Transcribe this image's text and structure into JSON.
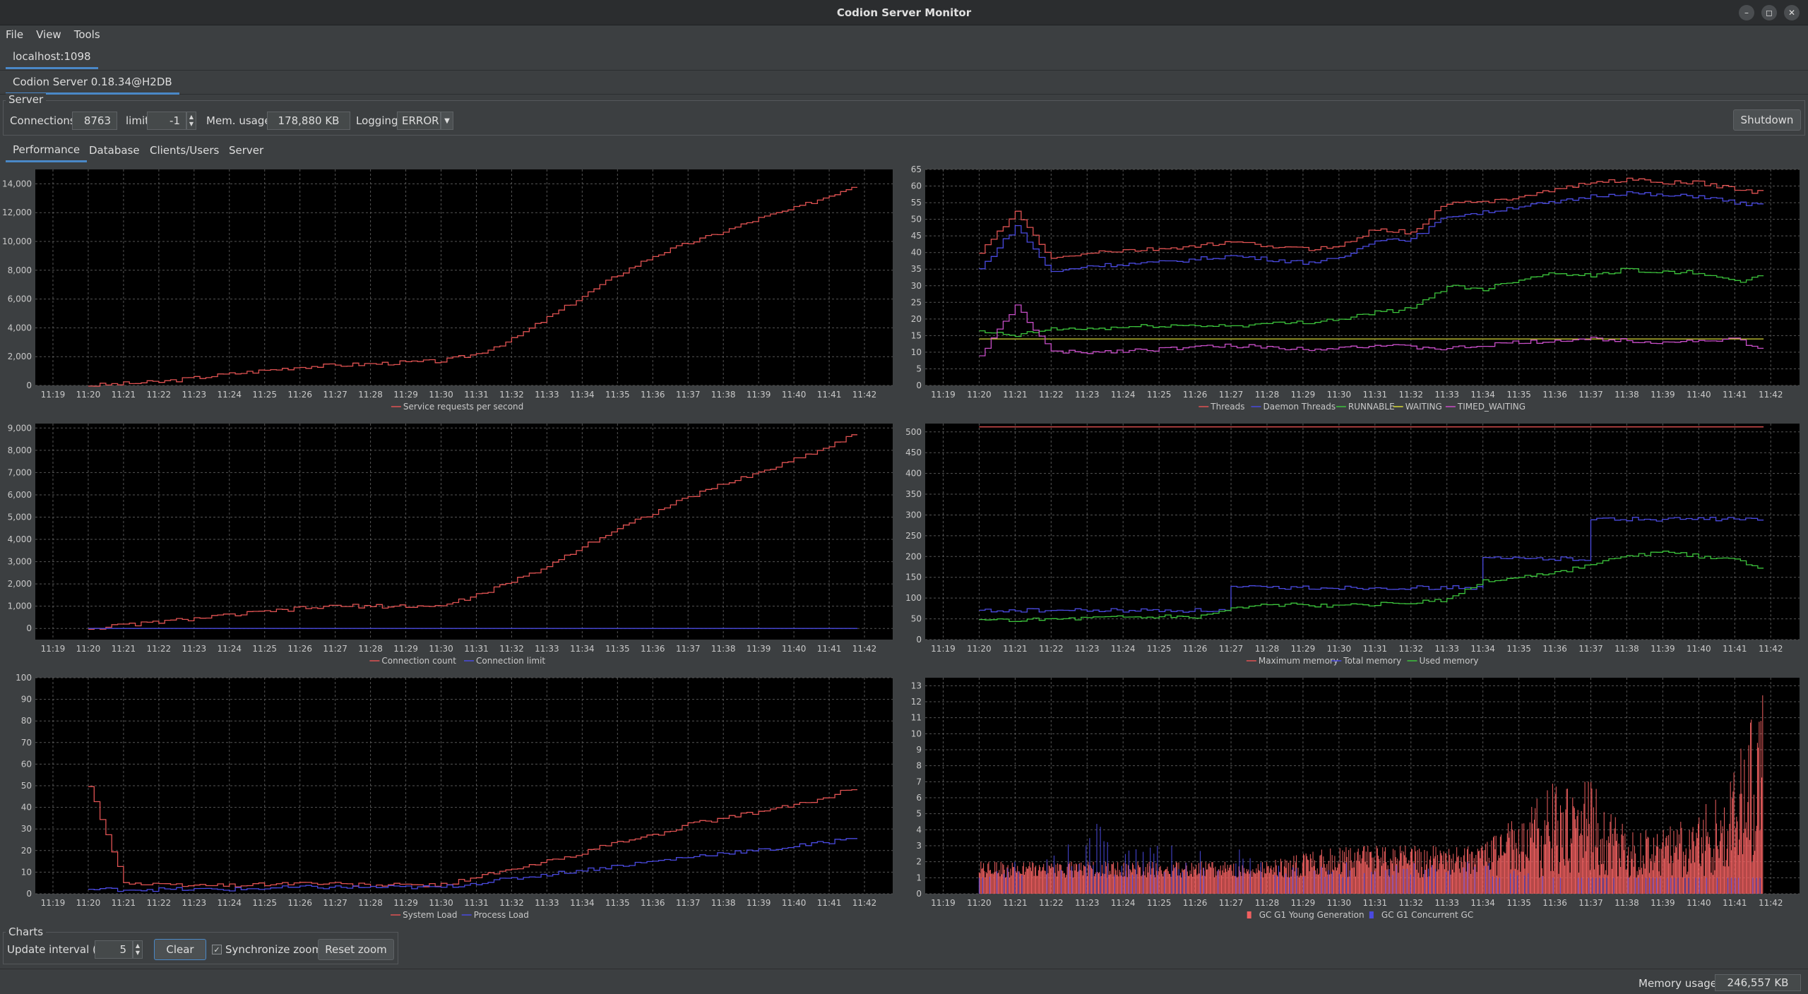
{
  "window": {
    "title": "Codion Server Monitor"
  },
  "menu": [
    "File",
    "View",
    "Tools"
  ],
  "host_tab": "localhost:1098",
  "server_tab": "Codion Server 0.18.34@H2DB",
  "server_group": {
    "label": "Server",
    "connections_label": "Connections",
    "connections_value": "8763",
    "limit_label": "limit",
    "limit_value": "-1",
    "mem_label": "Mem. usage",
    "mem_value": "178,880 KB",
    "logging_label": "Logging",
    "logging_value": "ERROR",
    "shutdown_label": "Shutdown"
  },
  "tabs": [
    "Performance",
    "Database",
    "Clients/Users",
    "Server"
  ],
  "active_tab": "Performance",
  "charts_group": {
    "label": "Charts",
    "interval_label": "Update interval (s)",
    "interval_value": "5",
    "clear_label": "Clear",
    "sync_label": "Synchronize zoom",
    "sync_checked": true,
    "reset_label": "Reset zoom"
  },
  "status": {
    "memory_label": "Memory usage:",
    "memory_value": "246,557 KB"
  },
  "colors": {
    "red": "#e05252",
    "blue": "#4a4ae0",
    "green": "#3cc43c",
    "yellow": "#d8d836",
    "magenta": "#c84ec8",
    "plot_bg": "#000000"
  },
  "chart_data": [
    {
      "type": "line",
      "x_ticks": [
        "11:19",
        "11:20",
        "11:21",
        "11:22",
        "11:23",
        "11:24",
        "11:25",
        "11:26",
        "11:27",
        "11:28",
        "11:29",
        "11:30",
        "11:31",
        "11:32",
        "11:33",
        "11:34",
        "11:35",
        "11:36",
        "11:37",
        "11:38",
        "11:39",
        "11:40",
        "11:41",
        "11:42"
      ],
      "ylim": [
        0,
        15000
      ],
      "y_ticks": [
        "0",
        "2,000",
        "4,000",
        "6,000",
        "8,000",
        "10,000",
        "12,000",
        "14,000"
      ],
      "series": [
        {
          "name": "Service requests per second",
          "color": "#e05252",
          "x": [
            "11:20",
            "11:22",
            "11:24",
            "11:26",
            "11:28",
            "11:30",
            "11:31",
            "11:32",
            "11:33",
            "11:34",
            "11:35",
            "11:36",
            "11:37",
            "11:38",
            "11:39",
            "11:40",
            "11:41",
            "11:42"
          ],
          "values": [
            0,
            250,
            800,
            1300,
            1500,
            1700,
            2200,
            3200,
            4700,
            6200,
            7700,
            9000,
            9900,
            10700,
            11600,
            12300,
            13200,
            14000
          ]
        }
      ]
    },
    {
      "type": "line",
      "x_ticks": [
        "11:19",
        "11:20",
        "11:21",
        "11:22",
        "11:23",
        "11:24",
        "11:25",
        "11:26",
        "11:27",
        "11:28",
        "11:29",
        "11:30",
        "11:31",
        "11:32",
        "11:33",
        "11:34",
        "11:35",
        "11:36",
        "11:37",
        "11:38",
        "11:39",
        "11:40",
        "11:41",
        "11:42"
      ],
      "ylim": [
        0,
        65
      ],
      "y_ticks": [
        "0",
        "5",
        "10",
        "15",
        "20",
        "25",
        "30",
        "35",
        "40",
        "45",
        "50",
        "55",
        "60",
        "65"
      ],
      "series": [
        {
          "name": "Threads",
          "color": "#e05252",
          "x": [
            "11:20",
            "11:21",
            "11:22",
            "11:23",
            "11:25",
            "11:27",
            "11:29",
            "11:30",
            "11:31",
            "11:32",
            "11:33",
            "11:34",
            "11:35",
            "11:36",
            "11:37",
            "11:38",
            "11:39",
            "11:40",
            "11:41",
            "11:42"
          ],
          "values": [
            40,
            52,
            38,
            40,
            41,
            43,
            41,
            42,
            47,
            46,
            55,
            55,
            57,
            59,
            61,
            62,
            61,
            61,
            59,
            58
          ]
        },
        {
          "name": "Daemon Threads",
          "color": "#4a4ae0",
          "x": [
            "11:20",
            "11:21",
            "11:22",
            "11:23",
            "11:25",
            "11:27",
            "11:29",
            "11:30",
            "11:31",
            "11:32",
            "11:33",
            "11:34",
            "11:35",
            "11:36",
            "11:37",
            "11:38",
            "11:39",
            "11:40",
            "11:41",
            "11:42"
          ],
          "values": [
            35,
            48,
            34,
            36,
            37,
            39,
            37,
            38,
            44,
            44,
            51,
            52,
            54,
            55,
            57,
            58,
            57,
            57,
            55,
            54
          ]
        },
        {
          "name": "RUNNABLE",
          "color": "#3cc43c",
          "x": [
            "11:20",
            "11:21",
            "11:22",
            "11:23",
            "11:25",
            "11:27",
            "11:29",
            "11:30",
            "11:31",
            "11:32",
            "11:33",
            "11:34",
            "11:35",
            "11:36",
            "11:37",
            "11:38",
            "11:39",
            "11:40",
            "11:41",
            "11:42"
          ],
          "values": [
            16,
            15,
            17,
            17,
            18,
            18,
            19,
            20,
            22,
            23,
            30,
            29,
            32,
            34,
            33,
            35,
            34,
            34,
            31,
            33
          ]
        },
        {
          "name": "WAITING",
          "color": "#d8d836",
          "x": [
            "11:20",
            "11:42"
          ],
          "values": [
            14,
            14
          ]
        },
        {
          "name": "TIMED_WAITING",
          "color": "#c84ec8",
          "x": [
            "11:20",
            "11:21",
            "11:22",
            "11:23",
            "11:25",
            "11:27",
            "11:29",
            "11:31",
            "11:33",
            "11:35",
            "11:37",
            "11:39",
            "11:41",
            "11:42"
          ],
          "values": [
            9,
            24,
            10,
            10,
            11,
            12,
            11,
            12,
            11,
            13,
            14,
            13,
            14,
            10
          ]
        }
      ]
    },
    {
      "type": "line",
      "x_ticks": [
        "11:19",
        "11:20",
        "11:21",
        "11:22",
        "11:23",
        "11:24",
        "11:25",
        "11:26",
        "11:27",
        "11:28",
        "11:29",
        "11:30",
        "11:31",
        "11:32",
        "11:33",
        "11:34",
        "11:35",
        "11:36",
        "11:37",
        "11:38",
        "11:39",
        "11:40",
        "11:41",
        "11:42"
      ],
      "ylim": [
        -500,
        9200
      ],
      "y_ticks": [
        "0",
        "1,000",
        "2,000",
        "3,000",
        "4,000",
        "5,000",
        "6,000",
        "7,000",
        "8,000",
        "9,000"
      ],
      "series": [
        {
          "name": "Connection count",
          "color": "#e05252",
          "x": [
            "11:20",
            "11:22",
            "11:24",
            "11:26",
            "11:27",
            "11:28",
            "11:29",
            "11:30",
            "11:31",
            "11:32",
            "11:33",
            "11:34",
            "11:35",
            "11:36",
            "11:37",
            "11:38",
            "11:39",
            "11:40",
            "11:41",
            "11:42"
          ],
          "values": [
            0,
            300,
            600,
            900,
            1000,
            1000,
            1000,
            1000,
            1500,
            2100,
            2800,
            3700,
            4500,
            5200,
            5900,
            6500,
            7000,
            7600,
            8200,
            8800
          ]
        },
        {
          "name": "Connection limit",
          "color": "#4a4ae0",
          "x": [
            "11:20",
            "11:42"
          ],
          "values": [
            0,
            0
          ]
        }
      ]
    },
    {
      "type": "line",
      "x_ticks": [
        "11:19",
        "11:20",
        "11:21",
        "11:22",
        "11:23",
        "11:24",
        "11:25",
        "11:26",
        "11:27",
        "11:28",
        "11:29",
        "11:30",
        "11:31",
        "11:32",
        "11:33",
        "11:34",
        "11:35",
        "11:36",
        "11:37",
        "11:38",
        "11:39",
        "11:40",
        "11:41",
        "11:42"
      ],
      "ylim": [
        0,
        520
      ],
      "y_ticks": [
        "0",
        "50",
        "100",
        "150",
        "200",
        "250",
        "300",
        "350",
        "400",
        "450",
        "500"
      ],
      "series": [
        {
          "name": "Maximum memory",
          "color": "#e05252",
          "x": [
            "11:20",
            "11:42"
          ],
          "values": [
            512,
            512
          ]
        },
        {
          "name": "Total memory",
          "color": "#4a4ae0",
          "x": [
            "11:20",
            "11:27",
            "11:27",
            "11:34",
            "11:34",
            "11:37",
            "11:37",
            "11:42"
          ],
          "values": [
            70,
            70,
            125,
            125,
            195,
            195,
            290,
            290
          ]
        },
        {
          "name": "Used memory",
          "color": "#3cc43c",
          "x": [
            "11:20",
            "11:22",
            "11:24",
            "11:26",
            "11:27",
            "11:28",
            "11:30",
            "11:32",
            "11:33",
            "11:34",
            "11:35",
            "11:36",
            "11:37",
            "11:38",
            "11:39",
            "11:40",
            "11:41",
            "11:42"
          ],
          "values": [
            45,
            50,
            55,
            55,
            75,
            85,
            80,
            90,
            95,
            140,
            150,
            160,
            180,
            200,
            210,
            200,
            190,
            170
          ]
        }
      ]
    },
    {
      "type": "line",
      "x_ticks": [
        "11:19",
        "11:20",
        "11:21",
        "11:22",
        "11:23",
        "11:24",
        "11:25",
        "11:26",
        "11:27",
        "11:28",
        "11:29",
        "11:30",
        "11:31",
        "11:32",
        "11:33",
        "11:34",
        "11:35",
        "11:36",
        "11:37",
        "11:38",
        "11:39",
        "11:40",
        "11:41",
        "11:42"
      ],
      "ylim": [
        0,
        100
      ],
      "y_ticks": [
        "0",
        "10",
        "20",
        "30",
        "40",
        "50",
        "60",
        "70",
        "80",
        "90",
        "100"
      ],
      "series": [
        {
          "name": "System Load",
          "color": "#e05252",
          "x": [
            "11:20",
            "11:21",
            "11:22",
            "11:24",
            "11:26",
            "11:28",
            "11:30",
            "11:31",
            "11:32",
            "11:33",
            "11:34",
            "11:35",
            "11:36",
            "11:37",
            "11:38",
            "11:39",
            "11:40",
            "11:41",
            "11:42"
          ],
          "values": [
            50,
            5,
            4,
            4,
            5,
            4,
            4,
            8,
            11,
            15,
            19,
            24,
            27,
            32,
            35,
            38,
            41,
            45,
            50
          ]
        },
        {
          "name": "Process Load",
          "color": "#4a4ae0",
          "x": [
            "11:20",
            "11:21",
            "11:22",
            "11:24",
            "11:26",
            "11:28",
            "11:30",
            "11:31",
            "11:32",
            "11:33",
            "11:34",
            "11:35",
            "11:36",
            "11:37",
            "11:38",
            "11:39",
            "11:40",
            "11:41",
            "11:42"
          ],
          "values": [
            2,
            2,
            2,
            2,
            3,
            3,
            3,
            5,
            7,
            9,
            11,
            13,
            15,
            17,
            19,
            20,
            22,
            24,
            27
          ]
        }
      ]
    },
    {
      "type": "bar",
      "x_ticks": [
        "11:19",
        "11:20",
        "11:21",
        "11:22",
        "11:23",
        "11:24",
        "11:25",
        "11:26",
        "11:27",
        "11:28",
        "11:29",
        "11:30",
        "11:31",
        "11:32",
        "11:33",
        "11:34",
        "11:35",
        "11:36",
        "11:37",
        "11:38",
        "11:39",
        "11:40",
        "11:41",
        "11:42"
      ],
      "ylim": [
        0,
        13.5
      ],
      "y_ticks": [
        "0",
        "1",
        "2",
        "3",
        "4",
        "5",
        "6",
        "7",
        "8",
        "9",
        "10",
        "11",
        "12",
        "13"
      ],
      "series": [
        {
          "name": "GC G1 Young Generation",
          "color": "#f06060",
          "x": [
            "11:20",
            "11:22",
            "11:24",
            "11:26",
            "11:28",
            "11:30",
            "11:32",
            "11:34",
            "11:35",
            "11:36",
            "11:37",
            "11:38",
            "11:39",
            "11:40",
            "11:41",
            "11:42"
          ],
          "values": [
            2,
            2,
            2,
            2,
            2,
            3,
            3,
            3,
            5,
            7,
            7,
            4,
            4,
            5,
            8,
            13
          ]
        },
        {
          "name": "GC G1 Concurrent GC",
          "color": "#4a4ae0",
          "x": [
            "11:20",
            "11:22",
            "11:23",
            "11:24",
            "11:25",
            "11:26",
            "11:27",
            "11:28",
            "11:30",
            "11:32",
            "11:34",
            "11:36",
            "11:38",
            "11:40",
            "11:42"
          ],
          "values": [
            1,
            3,
            6,
            3,
            3,
            3,
            3,
            2,
            2,
            2,
            2,
            1,
            1,
            1,
            1
          ]
        }
      ]
    }
  ]
}
